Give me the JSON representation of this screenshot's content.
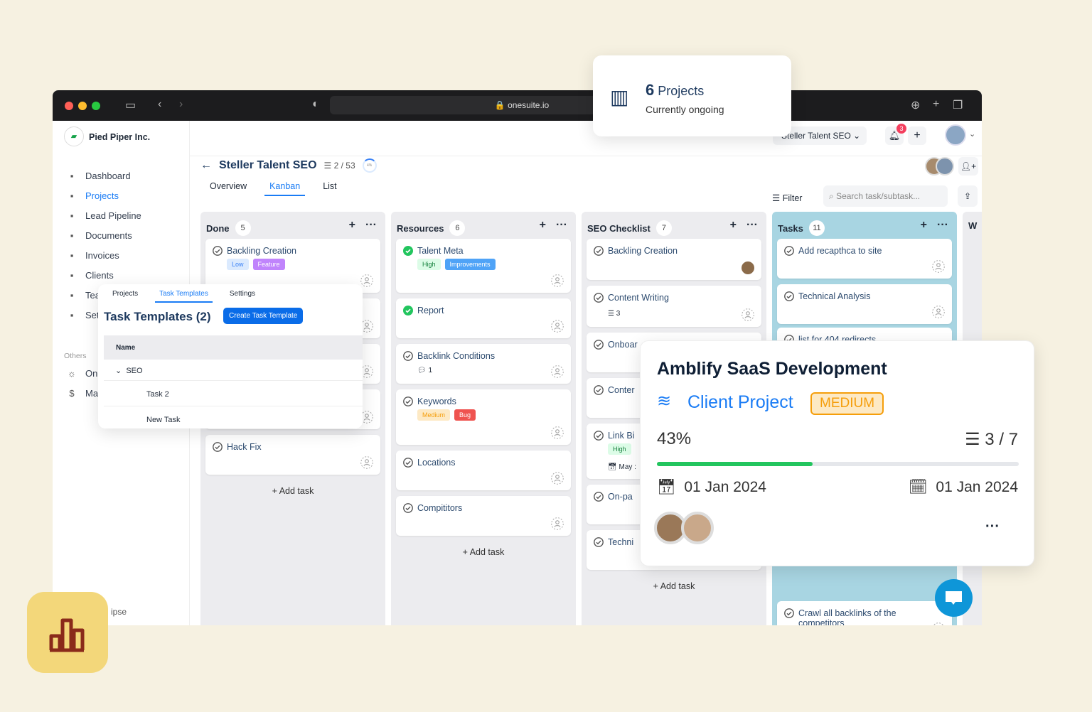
{
  "browser": {
    "url": "onesuite.io"
  },
  "org": {
    "name": "Pied Piper Inc."
  },
  "sidebar": {
    "items": [
      {
        "label": "Dashboard",
        "icon": "chart-line-icon"
      },
      {
        "label": "Projects",
        "icon": "kanban-icon",
        "active": true
      },
      {
        "label": "Lead Pipeline",
        "icon": "user-search-icon"
      },
      {
        "label": "Documents",
        "icon": "document-edit-icon"
      },
      {
        "label": "Invoices",
        "icon": "invoice-icon"
      },
      {
        "label": "Clients",
        "icon": "user-icon"
      },
      {
        "label": "Tea",
        "icon": "users-icon"
      },
      {
        "label": "Set",
        "icon": "gear-icon"
      }
    ],
    "others_label": "Others",
    "others": [
      {
        "label": "On",
        "icon": "sun-icon"
      },
      {
        "label": "Ma",
        "icon": "dollar-icon"
      }
    ],
    "collapse": "ipse"
  },
  "topbar": {
    "project_select": "Steller Talent SEO",
    "notifications": "3"
  },
  "project": {
    "title": "Steller Talent SEO",
    "tasks": "2 / 53",
    "progress": "4%",
    "tabs": [
      "Overview",
      "Kanban",
      "List"
    ],
    "active_tab": "Kanban",
    "filter": "Filter",
    "search_placeholder": "Search task/subtask..."
  },
  "columns": [
    {
      "name": "Done",
      "count": "5",
      "cards": [
        {
          "title": "Backling Creation",
          "tags": [
            {
              "t": "Low",
              "bg": "#dbeafe",
              "fg": "#3b82f6"
            },
            {
              "t": "Feature",
              "bg": "#c084fc",
              "fg": "#fff"
            }
          ]
        },
        {
          "title": ""
        },
        {
          "title": ""
        },
        {
          "title": ""
        },
        {
          "title": "Hack Fix"
        }
      ],
      "add": "Add task"
    },
    {
      "name": "Resources",
      "count": "6",
      "cards": [
        {
          "title": "Talent Meta",
          "done": true,
          "tags": [
            {
              "t": "High",
              "bg": "#dcfce7",
              "fg": "#15803d"
            },
            {
              "t": "Improvements",
              "bg": "#4fa3f7",
              "fg": "#fff"
            }
          ]
        },
        {
          "title": "Report",
          "done": true
        },
        {
          "title": "Backlink Conditions",
          "comments": "1"
        },
        {
          "title": "Keywords",
          "tags": [
            {
              "t": "Medium",
              "bg": "#fde9c4",
              "fg": "#f59e0b"
            },
            {
              "t": "Bug",
              "bg": "#ef5350",
              "fg": "#fff"
            }
          ]
        },
        {
          "title": "Locations"
        },
        {
          "title": "Compititors"
        }
      ],
      "add": "Add task"
    },
    {
      "name": "SEO Checklist",
      "count": "7",
      "cards": [
        {
          "title": "Backling Creation"
        },
        {
          "title": "Content Writing",
          "subtasks": "3"
        },
        {
          "title": "Onboar"
        },
        {
          "title": "Conter"
        },
        {
          "title": "Link Bi",
          "tags": [
            {
              "t": "High",
              "bg": "#dcfce7",
              "fg": "#15803d"
            }
          ],
          "date": "May :"
        },
        {
          "title": "On-pa"
        },
        {
          "title": "Techni"
        }
      ],
      "add": "Add task"
    },
    {
      "name": "Tasks",
      "count": "11",
      "cards": [
        {
          "title": "Add recapthca to site"
        },
        {
          "title": "Technical Analysis"
        },
        {
          "title": "list for 404 redirects"
        },
        {
          "title": "Crawl all backlinks of the competitors"
        }
      ]
    },
    {
      "name": "W"
    }
  ],
  "projects_popup": {
    "count": "6",
    "label": "Projects",
    "sub": "Currently ongoing"
  },
  "templates": {
    "tabs": [
      "Projects",
      "Task Templates",
      "Settings"
    ],
    "title": "Task Templates (2)",
    "create": "Create Task Template",
    "header": "Name",
    "group": "SEO",
    "rows": [
      "Task 2",
      "New Task"
    ]
  },
  "project_card": {
    "title": "Amblify SaaS Development",
    "type": "Client Project",
    "priority": "MEDIUM",
    "progress": "43%",
    "progress_value": 43,
    "tasks": "3 / 7",
    "start": "01 Jan 2024",
    "end": "01 Jan 2024",
    "colors": {
      "accent": "#1a7cf5",
      "progress": "#22c55e",
      "priority": "#f59e0b"
    }
  }
}
